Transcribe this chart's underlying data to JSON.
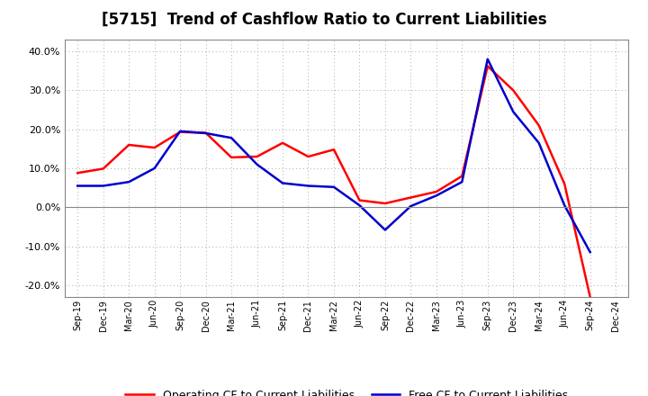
{
  "title": "[5715]  Trend of Cashflow Ratio to Current Liabilities",
  "x_labels": [
    "Sep-19",
    "Dec-19",
    "Mar-20",
    "Jun-20",
    "Sep-20",
    "Dec-20",
    "Mar-21",
    "Jun-21",
    "Sep-21",
    "Dec-21",
    "Mar-22",
    "Jun-22",
    "Sep-22",
    "Dec-22",
    "Mar-23",
    "Jun-23",
    "Sep-23",
    "Dec-23",
    "Mar-24",
    "Jun-24",
    "Sep-24",
    "Dec-24"
  ],
  "operating_cf": [
    0.088,
    0.099,
    0.16,
    0.153,
    0.193,
    0.191,
    0.128,
    0.13,
    0.165,
    0.13,
    0.148,
    0.018,
    0.01,
    0.025,
    0.04,
    0.08,
    0.362,
    0.3,
    0.21,
    0.06,
    -0.23,
    null
  ],
  "free_cf": [
    0.055,
    0.055,
    0.065,
    0.1,
    0.195,
    0.19,
    0.178,
    0.11,
    0.062,
    0.055,
    0.052,
    0.005,
    -0.058,
    0.003,
    0.03,
    0.065,
    0.38,
    0.245,
    0.165,
    0.005,
    -0.115,
    null
  ],
  "operating_color": "#ff0000",
  "free_color": "#0000cc",
  "ylim": [
    -0.23,
    0.43
  ],
  "yticks": [
    -0.2,
    -0.1,
    0.0,
    0.1,
    0.2,
    0.3,
    0.4
  ],
  "legend_op": "Operating CF to Current Liabilities",
  "legend_free": "Free CF to Current Liabilities",
  "background_color": "#ffffff",
  "grid_color": "#aaaaaa",
  "title_fontsize": 12,
  "line_width": 1.8
}
